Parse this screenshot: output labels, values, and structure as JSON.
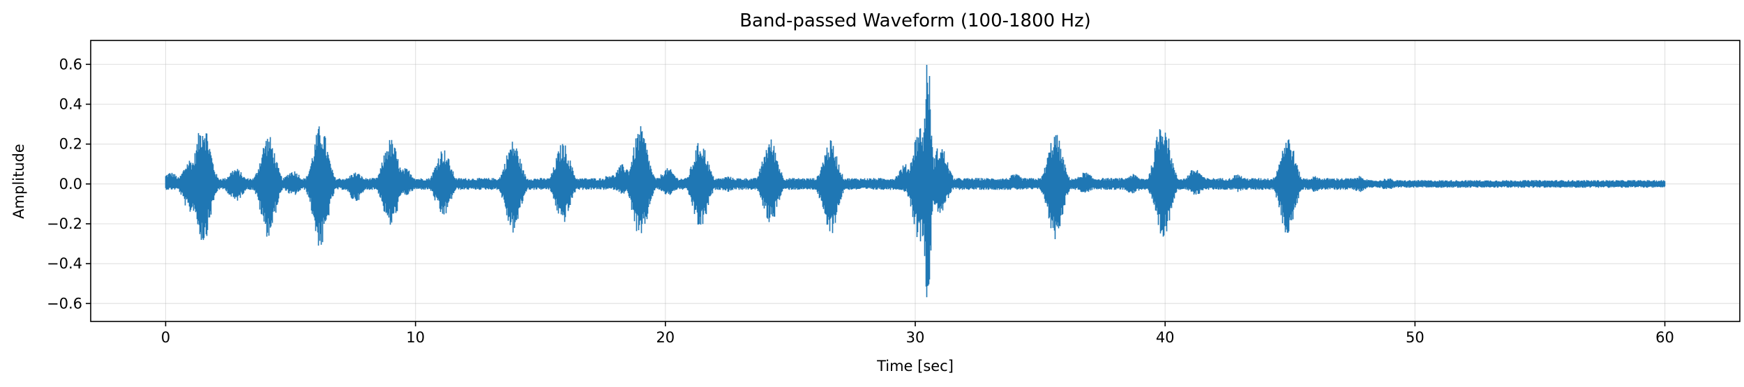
{
  "chart_data": {
    "type": "line",
    "title": "Band-passed Waveform (100-1800 Hz)",
    "xlabel": "Time [sec]",
    "ylabel": "Amplitude",
    "xlim": [
      -3,
      63
    ],
    "ylim": [
      -0.69,
      0.72
    ],
    "xticks": [
      0,
      10,
      20,
      30,
      40,
      50,
      60
    ],
    "xtick_labels": [
      "0",
      "10",
      "20",
      "30",
      "40",
      "50",
      "60"
    ],
    "yticks": [
      -0.6,
      -0.4,
      -0.2,
      0.0,
      0.2,
      0.4,
      0.6
    ],
    "ytick_labels": [
      "−0.6",
      "−0.4",
      "−0.2",
      "0.0",
      "0.2",
      "0.4",
      "0.6"
    ],
    "grid": true,
    "legend": "none",
    "color": "#1f77b4",
    "series": [
      {
        "x_range": [
          0,
          60
        ],
        "baseline_amplitude": 0.03,
        "peaks": [
          {
            "t": 0.2,
            "pos": 0.06,
            "neg": -0.03
          },
          {
            "t": 1.0,
            "pos": 0.13,
            "neg": -0.15
          },
          {
            "t": 1.5,
            "pos": 0.32,
            "neg": -0.3
          },
          {
            "t": 2.8,
            "pos": 0.08,
            "neg": -0.09
          },
          {
            "t": 4.1,
            "pos": 0.25,
            "neg": -0.27
          },
          {
            "t": 5.1,
            "pos": 0.07,
            "neg": -0.06
          },
          {
            "t": 6.2,
            "pos": 0.3,
            "neg": -0.33
          },
          {
            "t": 7.6,
            "pos": 0.06,
            "neg": -0.09
          },
          {
            "t": 9.0,
            "pos": 0.23,
            "neg": -0.22
          },
          {
            "t": 9.6,
            "pos": 0.08,
            "neg": -0.06
          },
          {
            "t": 11.1,
            "pos": 0.18,
            "neg": -0.17
          },
          {
            "t": 13.9,
            "pos": 0.22,
            "neg": -0.25
          },
          {
            "t": 15.9,
            "pos": 0.21,
            "neg": -0.2
          },
          {
            "t": 17.8,
            "pos": 0.05,
            "neg": -0.03
          },
          {
            "t": 18.3,
            "pos": 0.1,
            "neg": -0.05
          },
          {
            "t": 19.0,
            "pos": 0.29,
            "neg": -0.29
          },
          {
            "t": 20.1,
            "pos": 0.08,
            "neg": -0.06
          },
          {
            "t": 21.4,
            "pos": 0.22,
            "neg": -0.23
          },
          {
            "t": 22.5,
            "pos": 0.04,
            "neg": -0.04
          },
          {
            "t": 24.2,
            "pos": 0.23,
            "neg": -0.2
          },
          {
            "t": 26.6,
            "pos": 0.22,
            "neg": -0.26
          },
          {
            "t": 29.6,
            "pos": 0.1,
            "neg": -0.04
          },
          {
            "t": 30.2,
            "pos": 0.3,
            "neg": -0.3
          },
          {
            "t": 30.5,
            "pos": 0.66,
            "neg": -0.62
          },
          {
            "t": 31.0,
            "pos": 0.2,
            "neg": -0.15
          },
          {
            "t": 32.5,
            "pos": 0.03,
            "neg": -0.03
          },
          {
            "t": 34.0,
            "pos": 0.05,
            "neg": -0.03
          },
          {
            "t": 35.6,
            "pos": 0.26,
            "neg": -0.28
          },
          {
            "t": 36.8,
            "pos": 0.06,
            "neg": -0.05
          },
          {
            "t": 38.7,
            "pos": 0.05,
            "neg": -0.05
          },
          {
            "t": 39.9,
            "pos": 0.34,
            "neg": -0.3
          },
          {
            "t": 41.2,
            "pos": 0.08,
            "neg": -0.06
          },
          {
            "t": 42.9,
            "pos": 0.05,
            "neg": -0.04
          },
          {
            "t": 44.9,
            "pos": 0.25,
            "neg": -0.26
          },
          {
            "t": 46.0,
            "pos": 0.04,
            "neg": -0.04
          },
          {
            "t": 47.8,
            "pos": 0.04,
            "neg": -0.04
          },
          {
            "t": 48.9,
            "pos": 0.03,
            "neg": -0.03
          },
          {
            "t": 52.3,
            "pos": 0.02,
            "neg": -0.02
          },
          {
            "t": 56.0,
            "pos": 0.02,
            "neg": -0.02
          },
          {
            "t": 59.8,
            "pos": 0.02,
            "neg": -0.02
          }
        ]
      }
    ]
  }
}
